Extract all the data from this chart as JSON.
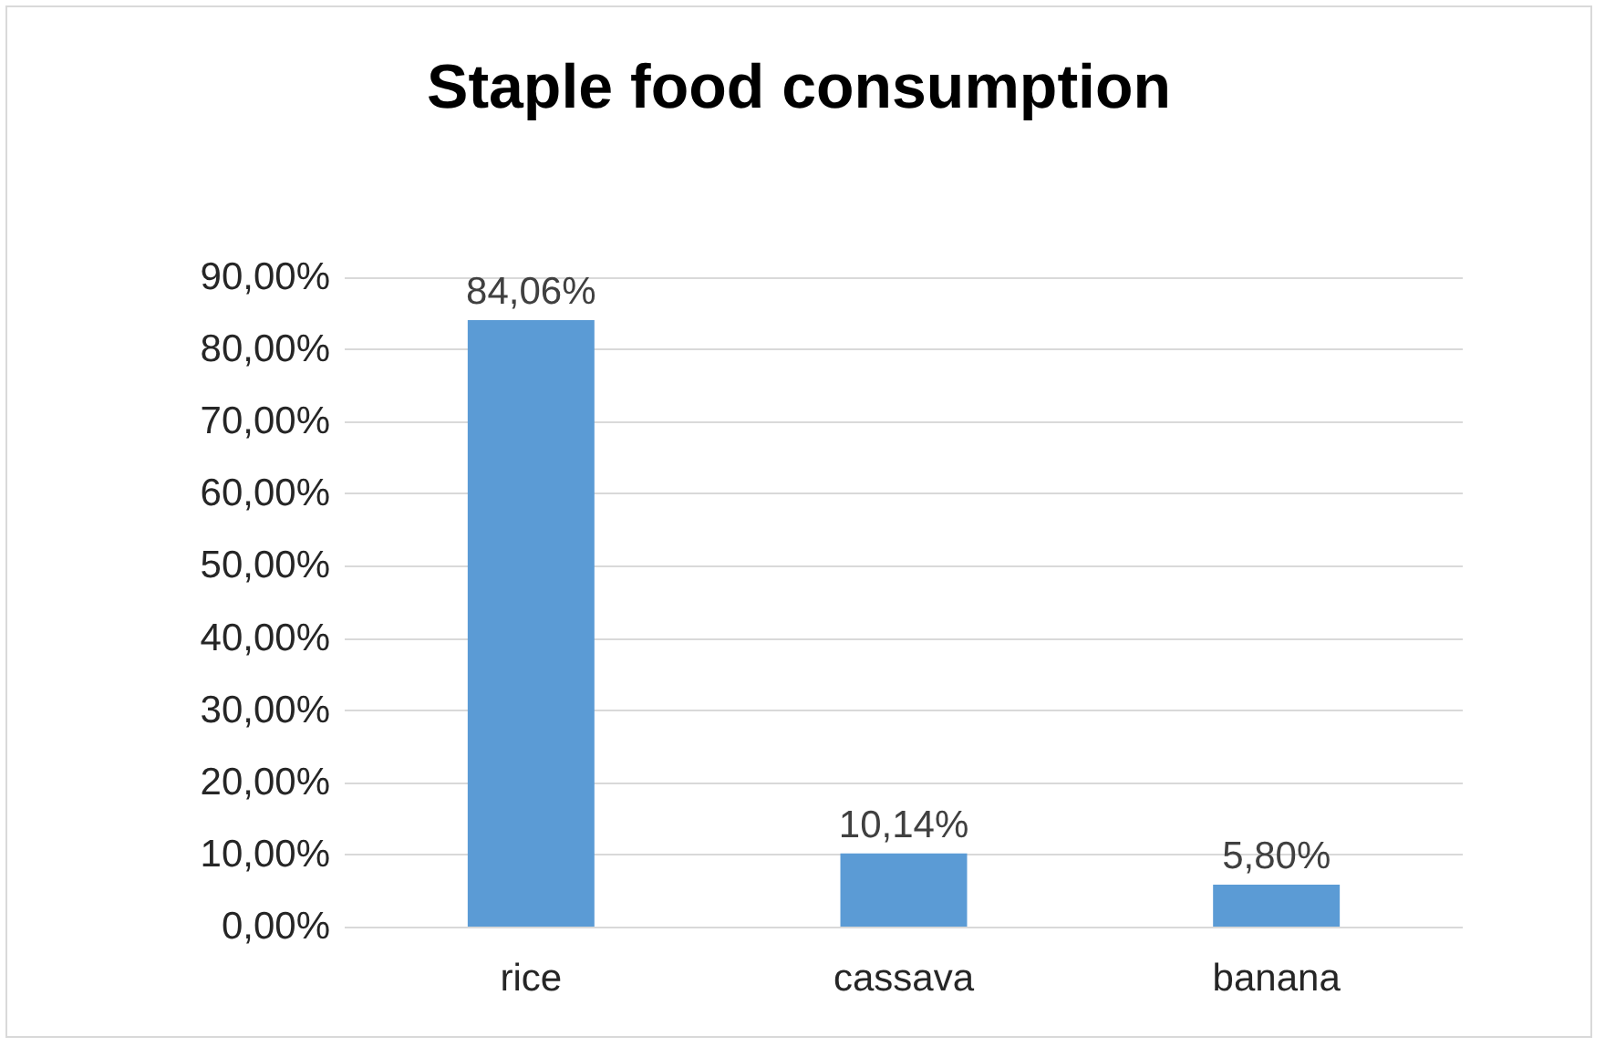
{
  "chart_data": {
    "type": "bar",
    "title": "Staple food consumption",
    "categories": [
      "rice",
      "cassava",
      "banana"
    ],
    "values": [
      84.06,
      10.14,
      5.8
    ],
    "value_labels": [
      "84,06%",
      "10,14%",
      "5,80%"
    ],
    "color": "#5b9bd5",
    "ylim": [
      0,
      90
    ],
    "yticks": [
      {
        "value": 0,
        "label": "0,00%"
      },
      {
        "value": 10,
        "label": "10,00%"
      },
      {
        "value": 20,
        "label": "20,00%"
      },
      {
        "value": 30,
        "label": "30,00%"
      },
      {
        "value": 40,
        "label": "40,00%"
      },
      {
        "value": 50,
        "label": "50,00%"
      },
      {
        "value": 60,
        "label": "60,00%"
      },
      {
        "value": 70,
        "label": "70,00%"
      },
      {
        "value": 80,
        "label": "80,00%"
      },
      {
        "value": 90,
        "label": "90,00%"
      }
    ],
    "grid": true
  }
}
